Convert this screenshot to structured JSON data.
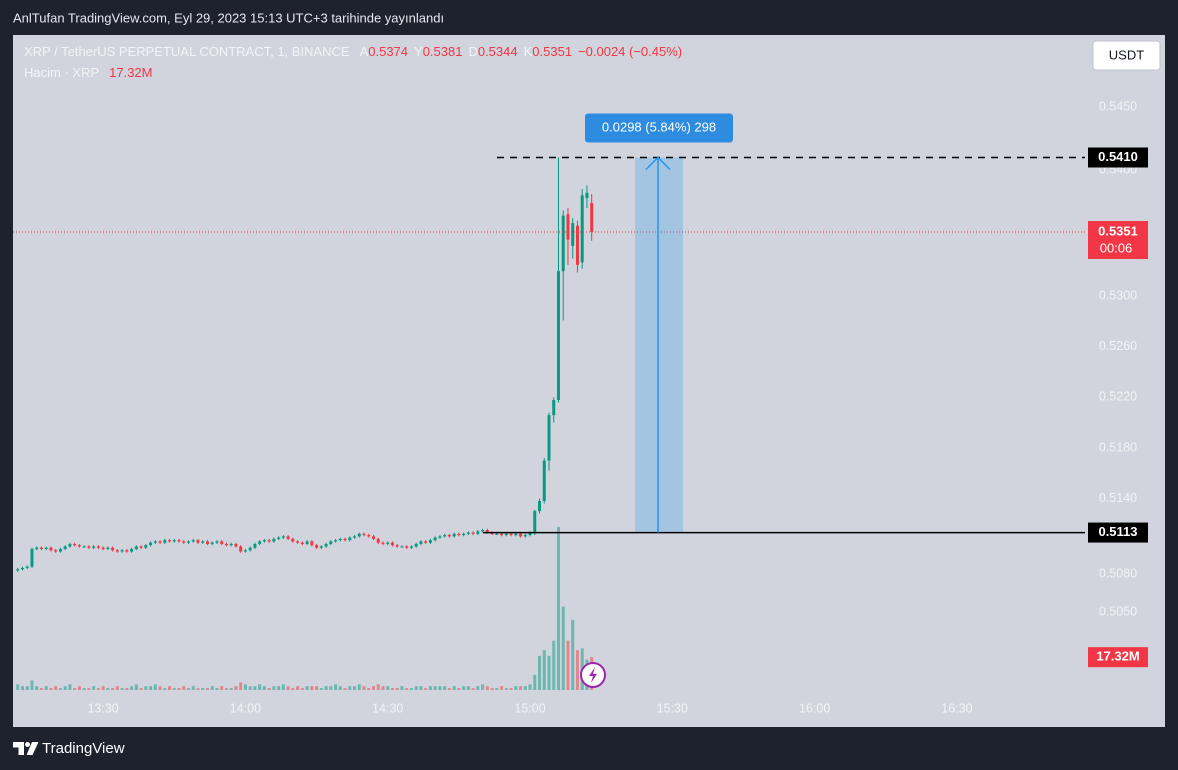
{
  "header": {
    "text": "AnlTufan TradingView.com, Eyl 29, 2023 15:13 UTC+3 tarihinde yayınlandı"
  },
  "footer": {
    "brand": "TradingView"
  },
  "chart_data": {
    "type": "candlestick",
    "title": "XRP / TetherUS PERPETUAL CONTRACT, 1, BINANCE",
    "currency": "USDT",
    "ohlc_letters": [
      "A",
      "Y",
      "D",
      "K"
    ],
    "change": "−0.0024 (−0.45%)",
    "countdown": "00:06",
    "up_color": "#089981",
    "down_color": "#f23645",
    "x": [
      "13:12",
      "13:13",
      "13:14",
      "13:15",
      "13:16",
      "13:17",
      "13:18",
      "13:19",
      "13:20",
      "13:21",
      "13:22",
      "13:23",
      "13:24",
      "13:25",
      "13:26",
      "13:27",
      "13:28",
      "13:29",
      "13:30",
      "13:31",
      "13:32",
      "13:33",
      "13:34",
      "13:35",
      "13:36",
      "13:37",
      "13:38",
      "13:39",
      "13:40",
      "13:41",
      "13:42",
      "13:43",
      "13:44",
      "13:45",
      "13:46",
      "13:47",
      "13:48",
      "13:49",
      "13:50",
      "13:51",
      "13:52",
      "13:53",
      "13:54",
      "13:55",
      "13:56",
      "13:57",
      "13:58",
      "13:59",
      "14:00",
      "14:01",
      "14:02",
      "14:03",
      "14:04",
      "14:05",
      "14:06",
      "14:07",
      "14:08",
      "14:09",
      "14:10",
      "14:11",
      "14:12",
      "14:13",
      "14:14",
      "14:15",
      "14:16",
      "14:17",
      "14:18",
      "14:19",
      "14:20",
      "14:21",
      "14:22",
      "14:23",
      "14:24",
      "14:25",
      "14:26",
      "14:27",
      "14:28",
      "14:29",
      "14:30",
      "14:31",
      "14:32",
      "14:33",
      "14:34",
      "14:35",
      "14:36",
      "14:37",
      "14:38",
      "14:39",
      "14:40",
      "14:41",
      "14:42",
      "14:43",
      "14:44",
      "14:45",
      "14:46",
      "14:47",
      "14:48",
      "14:49",
      "14:50",
      "14:51",
      "14:52",
      "14:53",
      "14:54",
      "14:55",
      "14:56",
      "14:57",
      "14:58",
      "14:59",
      "15:00",
      "15:01",
      "15:02",
      "15:03",
      "15:04",
      "15:05",
      "15:06",
      "15:07",
      "15:08",
      "15:09",
      "15:10",
      "15:11",
      "15:12",
      "15:13"
    ],
    "open": [
      0.5083,
      0.5084,
      0.5085,
      0.5086,
      0.51,
      0.5101,
      0.51,
      0.5101,
      0.5099,
      0.5098,
      0.51,
      0.5102,
      0.5104,
      0.5103,
      0.5102,
      0.5102,
      0.5101,
      0.5102,
      0.5101,
      0.51,
      0.5101,
      0.5099,
      0.5098,
      0.5099,
      0.5098,
      0.51,
      0.5102,
      0.5101,
      0.5103,
      0.5105,
      0.5106,
      0.5105,
      0.5107,
      0.5106,
      0.5107,
      0.5106,
      0.5105,
      0.5106,
      0.5107,
      0.5105,
      0.5106,
      0.5104,
      0.5105,
      0.5106,
      0.5104,
      0.5103,
      0.5104,
      0.5102,
      0.5098,
      0.5099,
      0.5101,
      0.5104,
      0.5106,
      0.5107,
      0.5106,
      0.5108,
      0.5109,
      0.511,
      0.5108,
      0.5106,
      0.5105,
      0.5104,
      0.5106,
      0.5103,
      0.5101,
      0.5102,
      0.5104,
      0.5106,
      0.5107,
      0.5108,
      0.5107,
      0.5109,
      0.511,
      0.5112,
      0.5111,
      0.511,
      0.5108,
      0.5105,
      0.5104,
      0.5105,
      0.5103,
      0.5102,
      0.5102,
      0.5101,
      0.5102,
      0.5104,
      0.5106,
      0.5105,
      0.5107,
      0.5109,
      0.511,
      0.5111,
      0.511,
      0.5112,
      0.5111,
      0.5112,
      0.5113,
      0.5112,
      0.5114,
      0.5115,
      0.5113,
      0.5112,
      0.5112,
      0.5111,
      0.5112,
      0.5111,
      0.5112,
      0.511,
      0.5111,
      0.5113,
      0.513,
      0.5138,
      0.517,
      0.5206,
      0.5218,
      0.532,
      0.5365,
      0.534,
      0.5356,
      0.5327,
      0.5378,
      0.5374
    ],
    "high": [
      0.5085,
      0.5086,
      0.5087,
      0.5101,
      0.5102,
      0.5102,
      0.5102,
      0.5102,
      0.51,
      0.5101,
      0.5103,
      0.5105,
      0.5105,
      0.5104,
      0.5103,
      0.5103,
      0.5103,
      0.5103,
      0.5102,
      0.5102,
      0.5102,
      0.51,
      0.51,
      0.51,
      0.5101,
      0.5103,
      0.5103,
      0.5104,
      0.5106,
      0.5107,
      0.5107,
      0.5108,
      0.5108,
      0.5108,
      0.5108,
      0.5107,
      0.5107,
      0.5108,
      0.5108,
      0.5107,
      0.5107,
      0.5106,
      0.5107,
      0.5107,
      0.5105,
      0.5105,
      0.5105,
      0.5103,
      0.51,
      0.5102,
      0.5105,
      0.5107,
      0.5108,
      0.5108,
      0.5109,
      0.511,
      0.5111,
      0.5111,
      0.5109,
      0.5107,
      0.5106,
      0.5107,
      0.5107,
      0.5104,
      0.5103,
      0.5105,
      0.5107,
      0.5108,
      0.5109,
      0.5109,
      0.511,
      0.5111,
      0.5113,
      0.5113,
      0.5112,
      0.5111,
      0.5109,
      0.5106,
      0.5106,
      0.5106,
      0.5104,
      0.5103,
      0.5103,
      0.5103,
      0.5105,
      0.5107,
      0.5107,
      0.5108,
      0.511,
      0.5111,
      0.5112,
      0.5112,
      0.5113,
      0.5113,
      0.5113,
      0.5114,
      0.5114,
      0.5115,
      0.5116,
      0.5116,
      0.5114,
      0.5113,
      0.5113,
      0.5113,
      0.5113,
      0.5113,
      0.5113,
      0.5112,
      0.5114,
      0.5131,
      0.514,
      0.5172,
      0.5208,
      0.522,
      0.541,
      0.5368,
      0.537,
      0.5362,
      0.536,
      0.5385,
      0.5388,
      0.5381
    ],
    "low": [
      0.5082,
      0.5083,
      0.5084,
      0.5085,
      0.5099,
      0.5099,
      0.5099,
      0.5098,
      0.5097,
      0.5097,
      0.5099,
      0.5101,
      0.5102,
      0.5101,
      0.5101,
      0.51,
      0.51,
      0.51,
      0.5099,
      0.5099,
      0.5098,
      0.5097,
      0.5097,
      0.5097,
      0.5097,
      0.5099,
      0.51,
      0.51,
      0.5102,
      0.5104,
      0.5104,
      0.5104,
      0.5105,
      0.5105,
      0.5105,
      0.5104,
      0.5104,
      0.5105,
      0.5104,
      0.5104,
      0.5103,
      0.5103,
      0.5104,
      0.5103,
      0.5102,
      0.5102,
      0.5101,
      0.5097,
      0.5097,
      0.5098,
      0.51,
      0.5103,
      0.5105,
      0.5105,
      0.5105,
      0.5107,
      0.5108,
      0.5107,
      0.5105,
      0.5104,
      0.5103,
      0.5103,
      0.5102,
      0.51,
      0.51,
      0.5101,
      0.5103,
      0.5105,
      0.5106,
      0.5106,
      0.5106,
      0.5108,
      0.5109,
      0.511,
      0.5109,
      0.5107,
      0.5104,
      0.5103,
      0.5103,
      0.5102,
      0.5101,
      0.5101,
      0.51,
      0.51,
      0.5101,
      0.5103,
      0.5104,
      0.5104,
      0.5106,
      0.5108,
      0.5109,
      0.5109,
      0.5109,
      0.511,
      0.511,
      0.5111,
      0.5111,
      0.5111,
      0.5113,
      0.5112,
      0.5111,
      0.5111,
      0.511,
      0.511,
      0.511,
      0.511,
      0.5109,
      0.5109,
      0.511,
      0.5111,
      0.5128,
      0.5136,
      0.5162,
      0.52,
      0.5216,
      0.5281,
      0.5325,
      0.533,
      0.5319,
      0.5322,
      0.537,
      0.5344
    ],
    "close": [
      0.5084,
      0.5085,
      0.5086,
      0.51,
      0.5101,
      0.51,
      0.5101,
      0.5099,
      0.5098,
      0.51,
      0.5102,
      0.5104,
      0.5103,
      0.5102,
      0.5102,
      0.5101,
      0.5102,
      0.5101,
      0.51,
      0.5101,
      0.5099,
      0.5098,
      0.5099,
      0.5098,
      0.51,
      0.5102,
      0.5101,
      0.5103,
      0.5105,
      0.5106,
      0.5105,
      0.5107,
      0.5106,
      0.5107,
      0.5106,
      0.5105,
      0.5106,
      0.5107,
      0.5105,
      0.5106,
      0.5104,
      0.5105,
      0.5106,
      0.5104,
      0.5103,
      0.5104,
      0.5102,
      0.5098,
      0.5099,
      0.5101,
      0.5104,
      0.5106,
      0.5107,
      0.5106,
      0.5108,
      0.5109,
      0.511,
      0.5108,
      0.5106,
      0.5105,
      0.5104,
      0.5106,
      0.5103,
      0.5101,
      0.5102,
      0.5104,
      0.5106,
      0.5107,
      0.5108,
      0.5107,
      0.5109,
      0.511,
      0.5112,
      0.5111,
      0.511,
      0.5108,
      0.5105,
      0.5104,
      0.5105,
      0.5103,
      0.5102,
      0.5102,
      0.5101,
      0.5102,
      0.5104,
      0.5106,
      0.5105,
      0.5107,
      0.5109,
      0.511,
      0.5111,
      0.511,
      0.5112,
      0.5111,
      0.5112,
      0.5113,
      0.5112,
      0.5114,
      0.5115,
      0.5113,
      0.5112,
      0.5112,
      0.5111,
      0.5112,
      0.5111,
      0.5112,
      0.511,
      0.5111,
      0.5113,
      0.513,
      0.5138,
      0.517,
      0.5206,
      0.5218,
      0.532,
      0.5364,
      0.5345,
      0.5358,
      0.5325,
      0.538,
      0.5382,
      0.5351
    ],
    "volume": {
      "name": "Hacim · XRP",
      "last_label": "17.32M",
      "values": [
        3,
        2,
        2,
        5,
        2,
        1,
        2,
        1,
        2,
        1,
        2,
        3,
        1,
        2,
        1,
        1,
        2,
        1,
        2,
        1,
        1,
        2,
        1,
        1,
        2,
        3,
        1,
        2,
        2,
        3,
        2,
        1,
        2,
        1,
        1,
        2,
        1,
        2,
        1,
        1,
        1,
        2,
        1,
        2,
        1,
        1,
        2,
        4,
        3,
        2,
        2,
        3,
        2,
        1,
        2,
        2,
        3,
        2,
        1,
        2,
        1,
        2,
        2,
        2,
        1,
        2,
        2,
        3,
        2,
        1,
        2,
        2,
        3,
        2,
        1,
        2,
        3,
        2,
        2,
        1,
        1,
        2,
        1,
        1,
        2,
        2,
        1,
        2,
        2,
        2,
        2,
        1,
        2,
        1,
        2,
        2,
        1,
        2,
        3,
        2,
        1,
        1,
        2,
        1,
        1,
        2,
        2,
        2,
        3,
        8,
        18,
        21,
        18,
        26,
        86,
        44,
        26,
        37,
        21,
        22,
        16,
        17.32
      ]
    },
    "xlim": [
      "13:11",
      "16:57"
    ],
    "xticks": [
      "13:30",
      "14:00",
      "14:30",
      "15:00",
      "15:30",
      "16:00",
      "16:30"
    ],
    "ylim": [
      0.4982,
      0.5507
    ],
    "yticks": [
      {
        "value": 0.505,
        "label": "0.5050"
      },
      {
        "value": 0.508,
        "label": "0.5080"
      },
      {
        "value": 0.514,
        "label": "0.5140"
      },
      {
        "value": 0.518,
        "label": "0.5180"
      },
      {
        "value": 0.522,
        "label": "0.5220"
      },
      {
        "value": 0.526,
        "label": "0.5260"
      },
      {
        "value": 0.53,
        "label": "0.5300"
      },
      {
        "value": 0.54,
        "label": "0.5400"
      },
      {
        "value": 0.545,
        "label": "0.5450"
      }
    ],
    "grid": false,
    "position": {
      "entry": {
        "value": 0.5113,
        "label": "0.5113"
      },
      "target": {
        "value": 0.541,
        "label": "0.5410"
      },
      "label": "0.0298 (5.84%) 298"
    }
  }
}
